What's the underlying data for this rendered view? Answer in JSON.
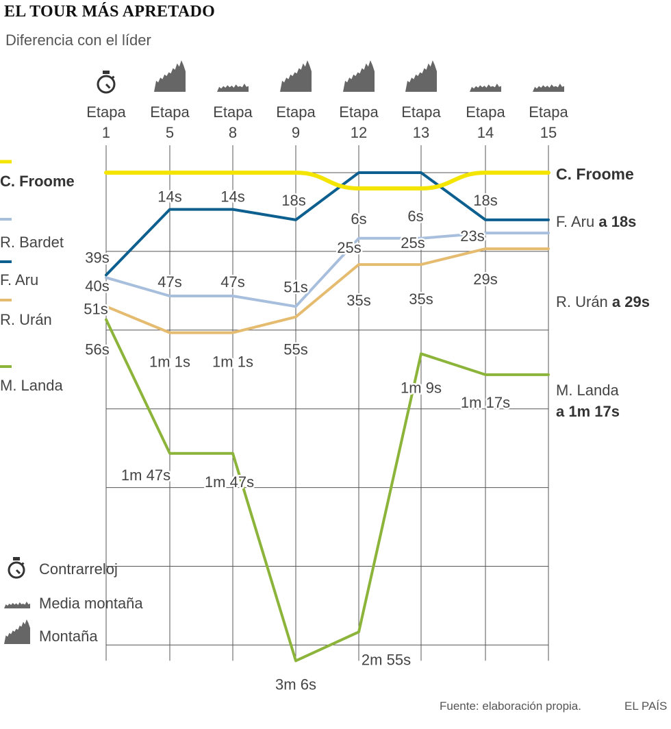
{
  "title": "EL TOUR MÁS APRETADO",
  "subtitle": "Diferencia con el líder",
  "source": "Fuente: elaboración propia.",
  "brand": "EL PAÍS",
  "colors": {
    "froome": "#f4e500",
    "aru": "#0c5f8e",
    "bardet": "#a7bfdc",
    "uran": "#e5bb70",
    "landa": "#8cb43a",
    "grid": "#555555",
    "text": "#444444",
    "icon": "#666666"
  },
  "chart_data": {
    "type": "line",
    "x_unit": "Etapa",
    "stages": [
      {
        "label": "Etapa",
        "number": "1",
        "profile": "Contrarreloj"
      },
      {
        "label": "Etapa",
        "number": "5",
        "profile": "Montaña"
      },
      {
        "label": "Etapa",
        "number": "8",
        "profile": "Media montaña"
      },
      {
        "label": "Etapa",
        "number": "9",
        "profile": "Montaña"
      },
      {
        "label": "Etapa",
        "number": "12",
        "profile": "Montaña"
      },
      {
        "label": "Etapa",
        "number": "13",
        "profile": "Montaña"
      },
      {
        "label": "Etapa",
        "number": "14",
        "profile": "Media montaña"
      },
      {
        "label": "Etapa",
        "number": "15",
        "profile": "Media montaña"
      }
    ],
    "y_unit": "seconds behind leader",
    "ylim": [
      0,
      186
    ],
    "grid": true,
    "series": [
      {
        "name": "C. Froome",
        "color_key": "froome",
        "values": [
          0,
          0,
          0,
          0,
          6,
          6,
          0,
          0
        ],
        "labels": [
          "",
          "",
          "",
          "",
          "6s",
          "6s",
          "",
          ""
        ],
        "end_name": "C. Froome",
        "end_gap": ""
      },
      {
        "name": "F. Aru",
        "color_key": "aru",
        "values": [
          39,
          14,
          14,
          18,
          0,
          0,
          18,
          18
        ],
        "labels": [
          "39s",
          "14s",
          "14s",
          "18s",
          "",
          "",
          "18s",
          ""
        ],
        "end_name": "F. Aru",
        "end_gap": "a 18s"
      },
      {
        "name": "R. Bardet",
        "color_key": "bardet",
        "values": [
          40,
          47,
          47,
          51,
          25,
          25,
          23,
          23
        ],
        "labels": [
          "40s",
          "47s",
          "47s",
          "51s",
          "25s",
          "25s",
          "23s",
          ""
        ],
        "end_name": "",
        "end_gap": ""
      },
      {
        "name": "R. Urán",
        "color_key": "uran",
        "values": [
          51,
          61,
          61,
          55,
          35,
          35,
          29,
          29
        ],
        "labels": [
          "51s",
          "1m 1s",
          "1m 1s",
          "55s",
          "35s",
          "35s",
          "29s",
          ""
        ],
        "end_name": "R. Urán",
        "end_gap": "a 29s"
      },
      {
        "name": "M. Landa",
        "color_key": "landa",
        "values": [
          56,
          107,
          107,
          186,
          175,
          69,
          77,
          77
        ],
        "labels": [
          "56s",
          "1m 47s",
          "1m 47s",
          "3m 6s",
          "2m 55s",
          "1m 9s",
          "1m 17s",
          ""
        ],
        "end_name": "M. Landa",
        "end_gap": "a 1m 17s"
      }
    ],
    "legend": [
      {
        "icon": "stopwatch-icon",
        "label": "Contrarreloj"
      },
      {
        "icon": "medium-mountain-icon",
        "label": "Media montaña"
      },
      {
        "icon": "mountain-icon",
        "label": "Montaña"
      }
    ]
  }
}
